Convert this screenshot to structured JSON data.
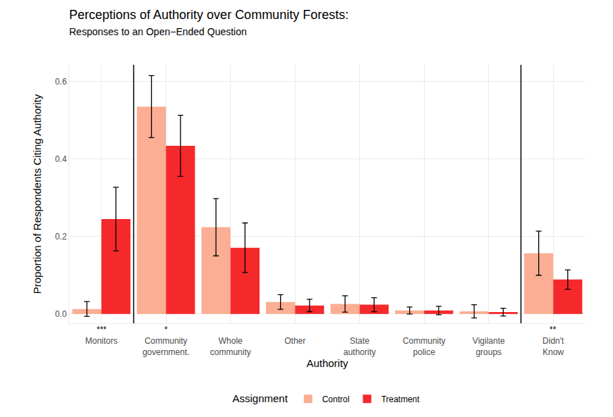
{
  "chart_data": {
    "type": "bar",
    "title": "Perceptions of Authority over Community Forests:",
    "subtitle": "Responses to an Open−Ended Question",
    "x_label": "Authority",
    "y_label": "Proportion of Respondents Citing Authority",
    "legend_title": "Assignment",
    "legend": "bottom",
    "grid": true,
    "categories": [
      "Monitors",
      "Community\ngovernment.",
      "Whole\ncommunity",
      "Other",
      "State\nauthority",
      "Community\npolice",
      "Vigilante\ngroups",
      "Didn't\nKnow"
    ],
    "significance": [
      "***",
      "*",
      null,
      null,
      null,
      null,
      null,
      "**"
    ],
    "series": [
      {
        "name": "Control",
        "color": "#FBAE93",
        "values": [
          0.013,
          0.535,
          0.224,
          0.031,
          0.026,
          0.009,
          0.007,
          0.157
        ],
        "errors": [
          0.019,
          0.08,
          0.074,
          0.019,
          0.021,
          0.009,
          0.017,
          0.057
        ]
      },
      {
        "name": "Treatment",
        "color": "#F5292B",
        "values": [
          0.245,
          0.434,
          0.171,
          0.022,
          0.024,
          0.009,
          0.005,
          0.089
        ],
        "errors": [
          0.082,
          0.079,
          0.064,
          0.016,
          0.018,
          0.011,
          0.01,
          0.025
        ]
      }
    ],
    "ylim": [
      -0.024,
      0.643
    ],
    "yticks": [
      {
        "value": 0,
        "label": "0.0"
      },
      0.2,
      0.4,
      0.6
    ]
  }
}
